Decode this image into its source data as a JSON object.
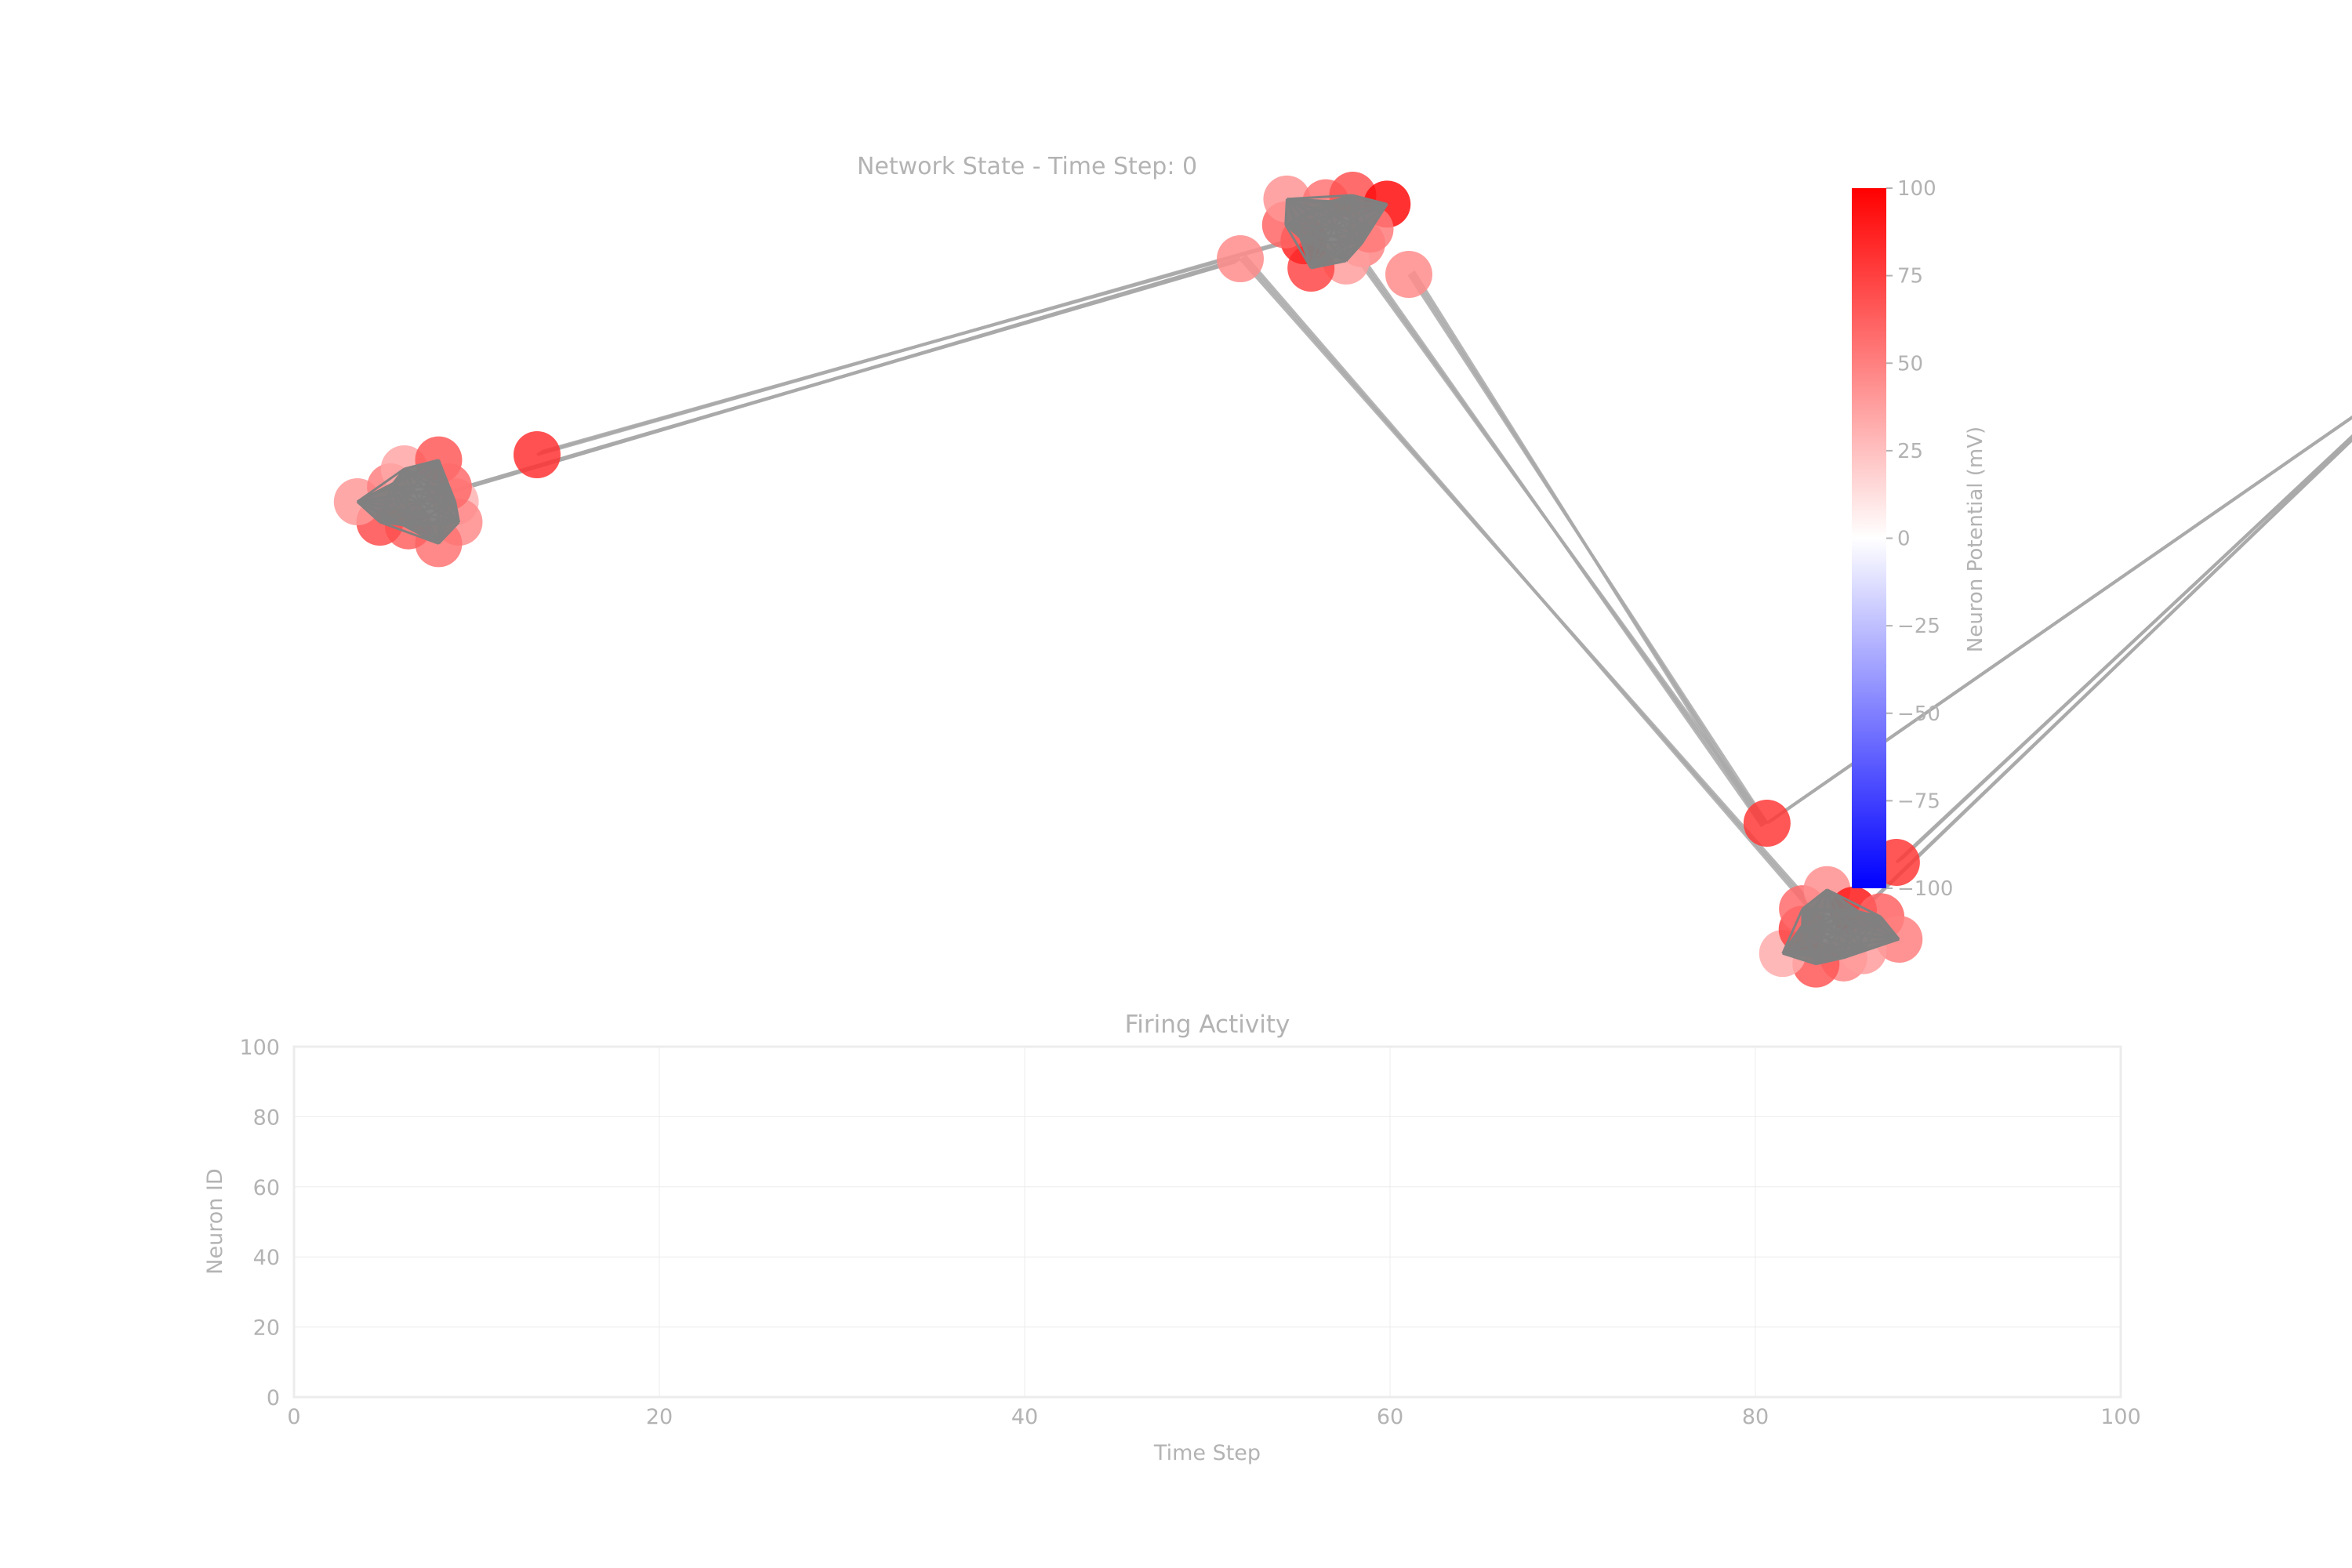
{
  "figure": {
    "background": "#ffffff",
    "text_color": "#b3b3b3",
    "grid_color": "#ececec"
  },
  "chart_data": [
    {
      "type": "network",
      "title": "Network State - Time Step: 0",
      "node_color_scale": {
        "min": -100,
        "max": 100,
        "low_color": "#0000ff",
        "mid_color": "#ffffff",
        "high_color": "#ff0000"
      },
      "colorbar": {
        "label": "Neuron Potential (mV)",
        "ticks": [
          "100",
          "75",
          "50",
          "25",
          "0",
          "−25",
          "−50",
          "−75",
          "−100"
        ]
      },
      "edge_color": "#a9a9a9",
      "cluster_fill_color": "#808080",
      "clusters": [
        {
          "center": [
            0.0,
            0.0
          ],
          "bridge_node_potential": 80
        },
        {
          "center": [
            1.0,
            0.35
          ],
          "bridge_node_potential": 45
        },
        {
          "center": [
            1.55,
            -0.55
          ],
          "bridge_node_potential": 78
        },
        {
          "center": [
            2.35,
            0.3
          ],
          "bridge_node_potential": 55
        }
      ],
      "node_potentials": [
        30,
        45,
        55,
        62,
        70,
        40,
        50,
        35,
        65,
        58,
        48,
        38,
        72,
        85,
        60,
        42,
        55,
        68,
        95,
        52,
        47,
        66,
        33,
        74,
        58,
        44,
        90,
        61,
        50,
        39,
        80,
        57,
        46,
        63,
        71,
        36,
        54,
        69,
        88,
        49
      ]
    },
    {
      "type": "scatter",
      "title": "Firing Activity",
      "xlabel": "Time Step",
      "ylabel": "Neuron ID",
      "xlim": [
        0,
        100
      ],
      "ylim": [
        0,
        100
      ],
      "xticks": [
        "0",
        "20",
        "40",
        "60",
        "80",
        "100"
      ],
      "yticks": [
        "0",
        "20",
        "40",
        "60",
        "80",
        "100"
      ],
      "grid": true,
      "points": []
    }
  ]
}
